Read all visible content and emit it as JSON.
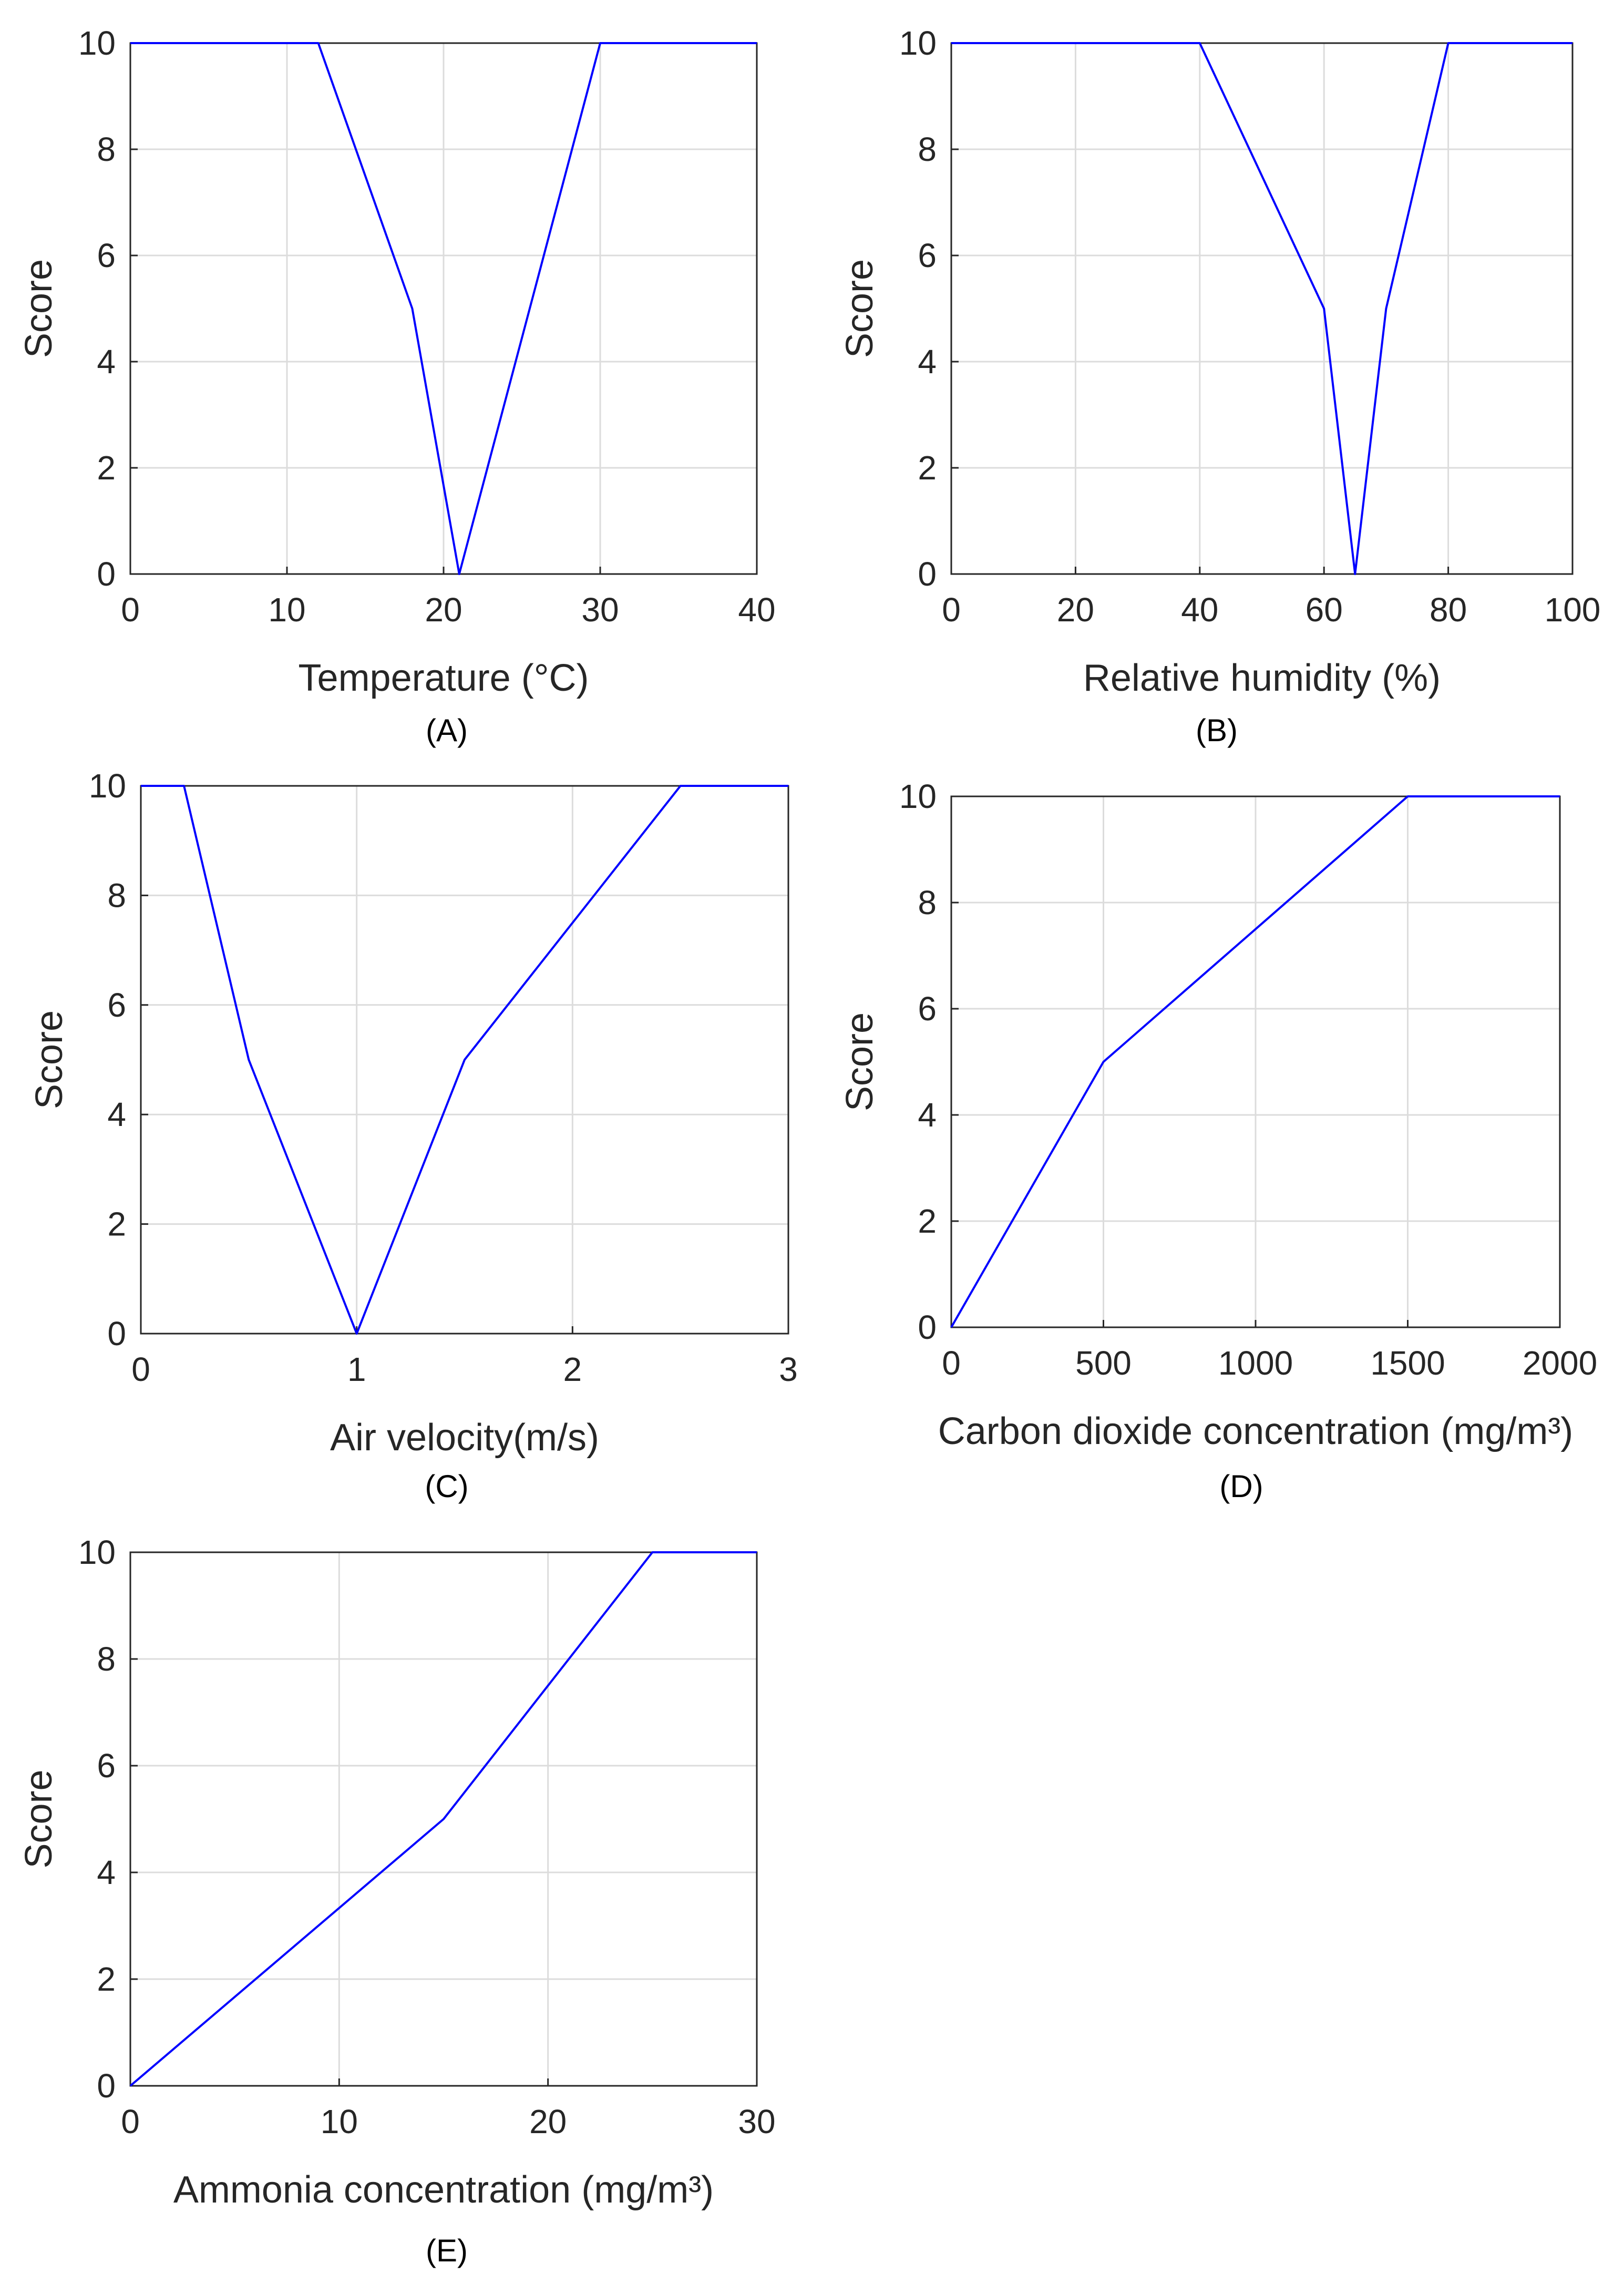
{
  "chart_data": [
    {
      "panel": "A",
      "caption": "(A)",
      "type": "line",
      "xlabel": "Temperature (°C)",
      "ylabel": "Score",
      "xlim": [
        0,
        40
      ],
      "ylim": [
        0,
        10
      ],
      "xticks": [
        0,
        10,
        20,
        30,
        40
      ],
      "yticks": [
        0,
        2,
        4,
        6,
        8,
        10
      ],
      "grid": true,
      "line_color": "#0000ff",
      "series": [
        {
          "name": "Score",
          "x": [
            0,
            12,
            18,
            21,
            30,
            40
          ],
          "y": [
            10,
            10,
            5,
            0,
            10,
            10
          ]
        }
      ]
    },
    {
      "panel": "B",
      "caption": "(B)",
      "type": "line",
      "xlabel": "Relative humidity (%)",
      "ylabel": "Score",
      "xlim": [
        0,
        100
      ],
      "ylim": [
        0,
        10
      ],
      "xticks": [
        0,
        20,
        40,
        60,
        80,
        100
      ],
      "yticks": [
        0,
        2,
        4,
        6,
        8,
        10
      ],
      "grid": true,
      "line_color": "#0000ff",
      "series": [
        {
          "name": "Score",
          "x": [
            0,
            40,
            60,
            65,
            70,
            80,
            100
          ],
          "y": [
            10,
            10,
            5,
            0,
            5,
            10,
            10
          ]
        }
      ]
    },
    {
      "panel": "C",
      "caption": "(C)",
      "type": "line",
      "xlabel": "Air velocity(m/s)",
      "ylabel": "Score",
      "xlim": [
        0,
        3
      ],
      "ylim": [
        0,
        10
      ],
      "xticks": [
        0,
        1,
        2,
        3
      ],
      "yticks": [
        0,
        2,
        4,
        6,
        8,
        10
      ],
      "grid": true,
      "line_color": "#0000ff",
      "series": [
        {
          "name": "Score",
          "x": [
            0,
            0.2,
            0.5,
            1,
            1.5,
            2.5,
            3
          ],
          "y": [
            10,
            10,
            5,
            0,
            5,
            10,
            10
          ]
        }
      ]
    },
    {
      "panel": "D",
      "caption": "(D)",
      "type": "line",
      "xlabel": "Carbon dioxide concentration (mg/m³)",
      "ylabel": "Score",
      "xlim": [
        0,
        2000
      ],
      "ylim": [
        0,
        10
      ],
      "xticks": [
        0,
        500,
        1000,
        1500,
        2000
      ],
      "yticks": [
        0,
        2,
        4,
        6,
        8,
        10
      ],
      "grid": true,
      "line_color": "#0000ff",
      "series": [
        {
          "name": "Score",
          "x": [
            0,
            500,
            1500,
            2000
          ],
          "y": [
            0,
            5,
            10,
            10
          ]
        }
      ]
    },
    {
      "panel": "E",
      "caption": "(E)",
      "type": "line",
      "xlabel": "Ammonia concentration (mg/m³)",
      "ylabel": "Score",
      "xlim": [
        0,
        30
      ],
      "ylim": [
        0,
        10
      ],
      "xticks": [
        0,
        10,
        20,
        30
      ],
      "yticks": [
        0,
        2,
        4,
        6,
        8,
        10
      ],
      "grid": true,
      "line_color": "#0000ff",
      "series": [
        {
          "name": "Score",
          "x": [
            0,
            15,
            25,
            30
          ],
          "y": [
            0,
            5,
            10,
            10
          ]
        }
      ]
    }
  ]
}
